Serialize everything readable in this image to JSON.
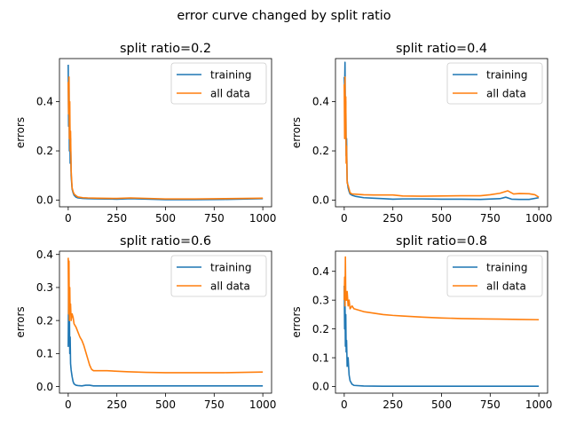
{
  "suptitle": "error curve changed by split ratio",
  "colors": {
    "training": "#1f77b4",
    "all_data": "#ff7f0e"
  },
  "chart_data": [
    {
      "type": "line",
      "title": "split ratio=0.2",
      "xlabel": "",
      "ylabel": "errors",
      "xlim": [
        -45,
        1045
      ],
      "ylim": [
        -0.027,
        0.575
      ],
      "xticks": [
        0,
        250,
        500,
        750,
        1000
      ],
      "yticks": [
        0.0,
        0.2,
        0.4
      ],
      "legend": "top-right",
      "series": [
        {
          "name": "training",
          "x": [
            0,
            2,
            4,
            6,
            8,
            10,
            12,
            15,
            20,
            25,
            30,
            40,
            50,
            75,
            100,
            150,
            250,
            320,
            500,
            650,
            800,
            1000
          ],
          "y": [
            0.55,
            0.3,
            0.5,
            0.2,
            0.35,
            0.15,
            0.25,
            0.1,
            0.045,
            0.03,
            0.02,
            0.012,
            0.009,
            0.007,
            0.006,
            0.005,
            0.004,
            0.006,
            0.002,
            0.002,
            0.003,
            0.006
          ]
        },
        {
          "name": "all data",
          "x": [
            0,
            2,
            4,
            6,
            8,
            10,
            12,
            15,
            20,
            25,
            30,
            40,
            50,
            75,
            100,
            150,
            250,
            320,
            500,
            650,
            800,
            1000
          ],
          "y": [
            0.48,
            0.35,
            0.5,
            0.25,
            0.4,
            0.2,
            0.28,
            0.12,
            0.05,
            0.035,
            0.025,
            0.018,
            0.013,
            0.01,
            0.009,
            0.008,
            0.007,
            0.009,
            0.005,
            0.005,
            0.006,
            0.008
          ]
        }
      ]
    },
    {
      "type": "line",
      "title": "split ratio=0.4",
      "xlabel": "",
      "ylabel": "errors",
      "xlim": [
        -45,
        1045
      ],
      "ylim": [
        -0.027,
        0.575
      ],
      "xticks": [
        0,
        250,
        500,
        750,
        1000
      ],
      "yticks": [
        0.0,
        0.2,
        0.4
      ],
      "legend": "top-right",
      "series": [
        {
          "name": "training",
          "x": [
            0,
            2,
            4,
            6,
            8,
            10,
            12,
            15,
            20,
            25,
            30,
            40,
            60,
            100,
            150,
            200,
            250,
            300,
            400,
            500,
            600,
            700,
            800,
            830,
            860,
            900,
            950,
            1000
          ],
          "y": [
            0.5,
            0.45,
            0.56,
            0.3,
            0.4,
            0.18,
            0.25,
            0.08,
            0.05,
            0.035,
            0.025,
            0.02,
            0.015,
            0.01,
            0.008,
            0.006,
            0.004,
            0.005,
            0.005,
            0.004,
            0.004,
            0.003,
            0.006,
            0.012,
            0.004,
            0.003,
            0.003,
            0.01
          ]
        },
        {
          "name": "all data",
          "x": [
            0,
            2,
            4,
            6,
            8,
            10,
            12,
            15,
            20,
            25,
            30,
            40,
            60,
            100,
            150,
            200,
            250,
            300,
            400,
            500,
            600,
            700,
            750,
            800,
            840,
            870,
            900,
            950,
            980,
            1000
          ],
          "y": [
            0.47,
            0.25,
            0.5,
            0.3,
            0.42,
            0.15,
            0.22,
            0.07,
            0.06,
            0.045,
            0.03,
            0.025,
            0.024,
            0.022,
            0.021,
            0.021,
            0.021,
            0.017,
            0.016,
            0.017,
            0.018,
            0.018,
            0.022,
            0.028,
            0.038,
            0.025,
            0.027,
            0.026,
            0.022,
            0.012
          ]
        }
      ]
    },
    {
      "type": "line",
      "title": "split ratio=0.6",
      "xlabel": "",
      "ylabel": "errors",
      "xlim": [
        -45,
        1045
      ],
      "ylim": [
        -0.02,
        0.41
      ],
      "xticks": [
        0,
        250,
        500,
        750,
        1000
      ],
      "yticks": [
        0.0,
        0.1,
        0.2,
        0.3,
        0.4
      ],
      "legend": "top-right",
      "series": [
        {
          "name": "training",
          "x": [
            0,
            2,
            4,
            6,
            8,
            10,
            12,
            15,
            20,
            25,
            30,
            40,
            50,
            70,
            90,
            110,
            130,
            200,
            400,
            600,
            800,
            1000
          ],
          "y": [
            0.12,
            0.3,
            0.18,
            0.24,
            0.1,
            0.15,
            0.07,
            0.05,
            0.03,
            0.015,
            0.008,
            0.004,
            0.003,
            0.002,
            0.004,
            0.004,
            0.002,
            0.002,
            0.002,
            0.002,
            0.002,
            0.002
          ]
        },
        {
          "name": "all data",
          "x": [
            0,
            2,
            4,
            6,
            8,
            10,
            12,
            15,
            20,
            25,
            30,
            40,
            50,
            60,
            70,
            80,
            90,
            100,
            110,
            120,
            130,
            150,
            200,
            300,
            400,
            500,
            600,
            700,
            800,
            900,
            1000
          ],
          "y": [
            0.39,
            0.22,
            0.38,
            0.2,
            0.3,
            0.22,
            0.25,
            0.2,
            0.22,
            0.21,
            0.19,
            0.18,
            0.165,
            0.15,
            0.14,
            0.125,
            0.105,
            0.085,
            0.065,
            0.052,
            0.048,
            0.048,
            0.048,
            0.045,
            0.043,
            0.042,
            0.042,
            0.042,
            0.042,
            0.043,
            0.044
          ]
        }
      ]
    },
    {
      "type": "line",
      "title": "split ratio=0.8",
      "xlabel": "",
      "ylabel": "errors",
      "xlim": [
        -45,
        1045
      ],
      "ylim": [
        -0.023,
        0.47
      ],
      "xticks": [
        0,
        250,
        500,
        750,
        1000
      ],
      "yticks": [
        0.0,
        0.1,
        0.2,
        0.3,
        0.4
      ],
      "legend": "top-right",
      "series": [
        {
          "name": "training",
          "x": [
            0,
            2,
            4,
            6,
            8,
            10,
            12,
            15,
            20,
            25,
            30,
            40,
            50,
            100,
            200,
            400,
            600,
            800,
            1000
          ],
          "y": [
            0.35,
            0.2,
            0.3,
            0.14,
            0.25,
            0.12,
            0.16,
            0.07,
            0.1,
            0.04,
            0.02,
            0.008,
            0.004,
            0.002,
            0.001,
            0.001,
            0.001,
            0.001,
            0.001
          ]
        },
        {
          "name": "all data",
          "x": [
            0,
            2,
            4,
            6,
            8,
            10,
            12,
            15,
            20,
            25,
            30,
            40,
            50,
            75,
            100,
            150,
            200,
            250,
            300,
            400,
            500,
            600,
            700,
            800,
            900,
            1000
          ],
          "y": [
            0.3,
            0.38,
            0.28,
            0.45,
            0.3,
            0.33,
            0.3,
            0.33,
            0.28,
            0.3,
            0.27,
            0.28,
            0.27,
            0.265,
            0.26,
            0.255,
            0.25,
            0.247,
            0.245,
            0.241,
            0.238,
            0.236,
            0.235,
            0.234,
            0.233,
            0.232
          ]
        }
      ]
    }
  ]
}
